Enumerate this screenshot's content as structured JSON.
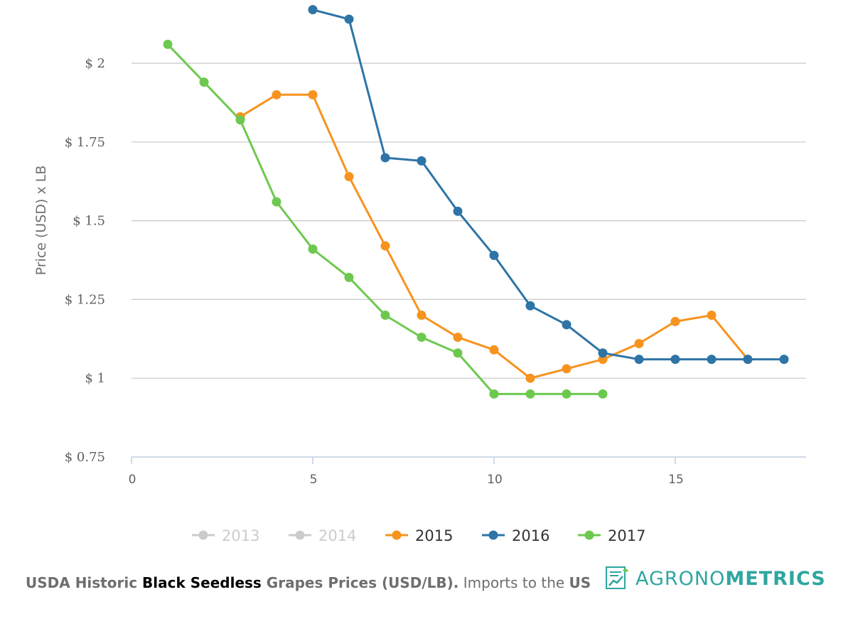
{
  "chart_data": {
    "type": "line",
    "title": "",
    "xlabel": "",
    "ylabel": "Price (USD) x LB",
    "xlim": [
      0,
      18.5
    ],
    "ylim": [
      0.75,
      2.25
    ],
    "x_ticks": [
      "0",
      "5",
      "10",
      "15"
    ],
    "x_tick_values": [
      0,
      5,
      10,
      15
    ],
    "y_ticks": [
      "$ 0.75",
      "$ 1",
      "$ 1.25",
      "$ 1.5",
      "$ 1.75",
      "$ 2"
    ],
    "y_tick_values": [
      0.75,
      1.0,
      1.25,
      1.5,
      1.75,
      2.0
    ],
    "grid": true,
    "legend_position": "bottom",
    "series": [
      {
        "name": "2013",
        "color": "#cccccc",
        "visible": false,
        "points": []
      },
      {
        "name": "2014",
        "color": "#cccccc",
        "visible": false,
        "points": []
      },
      {
        "name": "2015",
        "color": "#f7931e",
        "visible": true,
        "points": [
          [
            3,
            1.83
          ],
          [
            4,
            1.9
          ],
          [
            5,
            1.9
          ],
          [
            6,
            1.64
          ],
          [
            7,
            1.42
          ],
          [
            8,
            1.2
          ],
          [
            9,
            1.13
          ],
          [
            10,
            1.09
          ],
          [
            11,
            1.0
          ],
          [
            12,
            1.03
          ],
          [
            13,
            1.06
          ],
          [
            14,
            1.11
          ],
          [
            15,
            1.18
          ],
          [
            16,
            1.2
          ],
          [
            17,
            1.06
          ]
        ]
      },
      {
        "name": "2016",
        "color": "#2e74a6",
        "visible": true,
        "points": [
          [
            5,
            2.17
          ],
          [
            6,
            2.14
          ],
          [
            7,
            1.7
          ],
          [
            8,
            1.69
          ],
          [
            9,
            1.53
          ],
          [
            10,
            1.39
          ],
          [
            11,
            1.23
          ],
          [
            12,
            1.17
          ],
          [
            13,
            1.08
          ],
          [
            14,
            1.06
          ],
          [
            15,
            1.06
          ],
          [
            16,
            1.06
          ],
          [
            17,
            1.06
          ],
          [
            18,
            1.06
          ]
        ]
      },
      {
        "name": "2017",
        "color": "#6dc94e",
        "visible": true,
        "points": [
          [
            1,
            2.06
          ],
          [
            2,
            1.94
          ],
          [
            3,
            1.82
          ],
          [
            4,
            1.56
          ],
          [
            5,
            1.41
          ],
          [
            6,
            1.32
          ],
          [
            7,
            1.2
          ],
          [
            8,
            1.13
          ],
          [
            9,
            1.08
          ],
          [
            10,
            0.95
          ],
          [
            11,
            0.95
          ],
          [
            12,
            0.95
          ],
          [
            13,
            0.95
          ]
        ]
      }
    ]
  },
  "footer": {
    "part1": "USDA Historic ",
    "part2": "Black Seedless",
    "part3": " Grapes Prices (USD/LB).",
    "part4": " Imports to the ",
    "part5": "US"
  },
  "logo": {
    "light": "AGRONO",
    "bold": "METRICS",
    "icon": "chart-document-icon",
    "color": "#2ea6a0"
  }
}
